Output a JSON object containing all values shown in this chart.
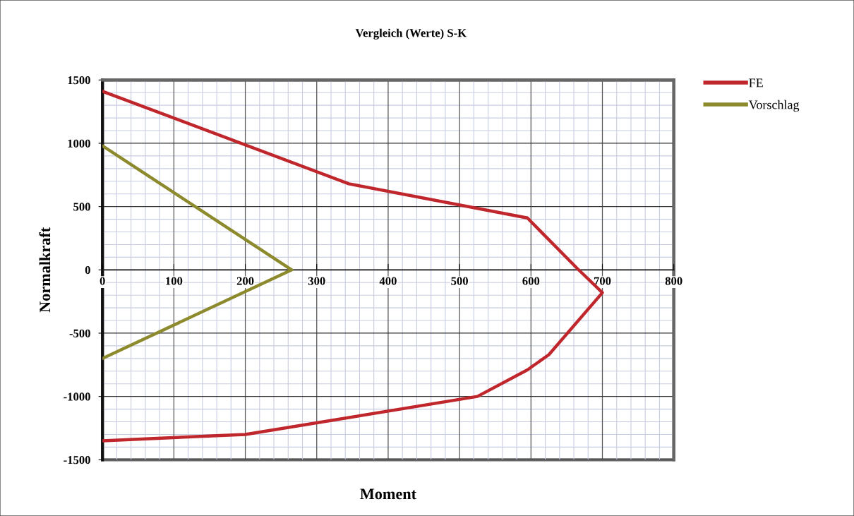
{
  "chart_data": {
    "type": "line",
    "title": "Vergleich (Werte) S-K",
    "xlabel": "Moment",
    "ylabel": "Normalkraft",
    "series": [
      {
        "name": "FE",
        "color": "#c0272d",
        "x": [
          0,
          345,
          595,
          665,
          700,
          625,
          595,
          525,
          200,
          0
        ],
        "values": [
          1410,
          680,
          410,
          10,
          -180,
          -670,
          -790,
          -1000,
          -1300,
          -1350
        ]
      },
      {
        "name": "Vorschlag",
        "color": "#8c8a2c",
        "x": [
          0,
          265,
          0
        ],
        "values": [
          980,
          0,
          -700
        ]
      }
    ],
    "xlim": [
      0,
      800
    ],
    "xticks": [
      0,
      100,
      200,
      300,
      400,
      500,
      600,
      700,
      800
    ],
    "ylim": [
      -1500,
      1500
    ],
    "yticks": [
      -1500,
      -1000,
      -500,
      0,
      500,
      1000,
      1500
    ],
    "grid": true,
    "legend": "top right",
    "marker": "none",
    "line_style": "solid"
  }
}
